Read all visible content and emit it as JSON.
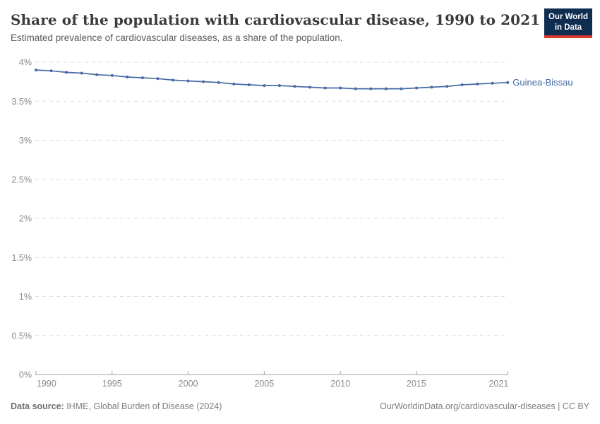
{
  "header": {
    "title": "Share of the population with cardiovascular disease, 1990 to 2021",
    "subtitle": "Estimated prevalence of cardiovascular diseases, as a share of the population.",
    "logo": {
      "line1": "Our World",
      "line2": "in Data"
    }
  },
  "colors": {
    "series_blue": "#466AA5",
    "grid": "#dedede",
    "axis": "#a0a0a0",
    "tick_text": "#8b8b8b",
    "logo_navy": "#0e2d51",
    "logo_red": "#d93a2b"
  },
  "chart_data": {
    "type": "line",
    "title": "Share of the population with cardiovascular disease, 1990 to 2021",
    "subtitle": "Estimated prevalence of cardiovascular diseases, as a share of the population.",
    "xlabel": "",
    "ylabel": "",
    "xlim": [
      1990,
      2021
    ],
    "ylim": [
      0,
      4
    ],
    "grid": "horizontal-dashed",
    "legend_position": "end-of-line-label",
    "x_ticks": [
      1990,
      1995,
      2000,
      2005,
      2010,
      2015,
      2021
    ],
    "y_ticks": [
      0,
      0.5,
      1,
      1.5,
      2,
      2.5,
      3,
      3.5,
      4
    ],
    "y_tick_labels": [
      "0%",
      "0.5%",
      "1%",
      "1.5%",
      "2%",
      "2.5%",
      "3%",
      "3.5%",
      "4%"
    ],
    "series": [
      {
        "name": "Guinea-Bissau",
        "color": "#466AA5",
        "x": [
          1990,
          1991,
          1992,
          1993,
          1994,
          1995,
          1996,
          1997,
          1998,
          1999,
          2000,
          2001,
          2002,
          2003,
          2004,
          2005,
          2006,
          2007,
          2008,
          2009,
          2010,
          2011,
          2012,
          2013,
          2014,
          2015,
          2016,
          2017,
          2018,
          2019,
          2020,
          2021
        ],
        "values": [
          3.9,
          3.89,
          3.87,
          3.86,
          3.84,
          3.83,
          3.81,
          3.8,
          3.79,
          3.77,
          3.76,
          3.75,
          3.74,
          3.72,
          3.71,
          3.7,
          3.7,
          3.69,
          3.68,
          3.67,
          3.67,
          3.66,
          3.66,
          3.66,
          3.66,
          3.67,
          3.68,
          3.69,
          3.71,
          3.72,
          3.73,
          3.74
        ]
      }
    ]
  },
  "footer": {
    "source_label": "Data source:",
    "source_text": " IHME, Global Burden of Disease (2024)",
    "link_text": "OurWorldinData.org/cardiovascular-diseases | CC BY"
  }
}
